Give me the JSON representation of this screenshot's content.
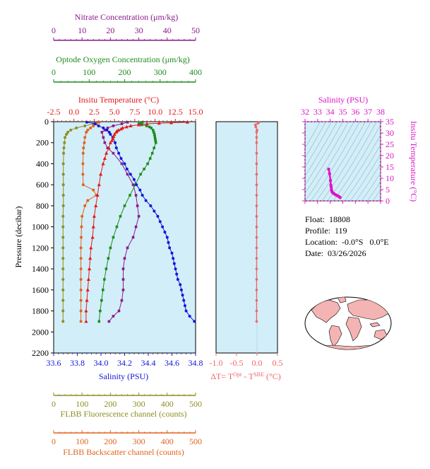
{
  "colors": {
    "nitrate": "#8B1A8B",
    "oxygen": "#1E8C1E",
    "temperature": "#E41A1A",
    "salinity": "#1414DC",
    "fluorescence": "#8E8E22",
    "backscatter": "#E0641E",
    "delta_t": "#F06464",
    "ts_magenta": "#DC14C8",
    "plot_bg": "#D2EEF8"
  },
  "float_info": {
    "float_label": "Float:",
    "float_value": "18808",
    "profile_label": "Profile:",
    "profile_value": "119",
    "location_label": "Location:",
    "location_lat": "-0.0°S",
    "location_lon": "0.0°E",
    "date_label": "Date:",
    "date_value": "03/26/2026"
  },
  "chart_data": [
    {
      "type": "line",
      "name": "main-profile",
      "y_axis": {
        "label": "Pressure (decibar)",
        "range": [
          0,
          2200
        ],
        "ticks": [
          0,
          200,
          400,
          600,
          800,
          1000,
          1200,
          1400,
          1600,
          1800,
          2000,
          2200
        ],
        "inverted": true
      },
      "axes": {
        "salinity": {
          "label": "Salinity (PSU)",
          "range": [
            33.6,
            34.8
          ],
          "ticks": [
            "33.6",
            "33.8",
            "34.0",
            "34.2",
            "34.4",
            "34.6",
            "34.8"
          ]
        },
        "temperature": {
          "label": "Insitu Temperature (°C)",
          "range": [
            -2.5,
            15
          ],
          "ticks": [
            "-2.5",
            "0.0",
            "2.5",
            "5.0",
            "7.5",
            "10.0",
            "12.5",
            "15.0"
          ]
        },
        "oxygen": {
          "label": "Optode Oxygen Concentration (μm/kg)",
          "range": [
            0,
            400
          ],
          "ticks": [
            "0",
            "100",
            "200",
            "300",
            "400"
          ]
        },
        "nitrate": {
          "label": "Nitrate Concentration (μm/kg)",
          "range": [
            0,
            50
          ],
          "ticks": [
            "0",
            "10",
            "20",
            "30",
            "40",
            "50"
          ]
        },
        "fluorescence": {
          "label": "FLBB Fluorescence channel (counts)",
          "range": [
            0,
            500
          ],
          "ticks": [
            "0",
            "100",
            "200",
            "300",
            "400",
            "500"
          ]
        },
        "backscatter": {
          "label": "FLBB Backscatter channel (counts)",
          "range": [
            0,
            500
          ],
          "ticks": [
            "0",
            "100",
            "200",
            "300",
            "400",
            "500"
          ]
        }
      },
      "series": [
        {
          "key": "temperature",
          "axis": "temperature",
          "marker": "triangle",
          "pressure": [
            5,
            10,
            15,
            20,
            30,
            40,
            50,
            60,
            70,
            80,
            90,
            100,
            120,
            140,
            160,
            180,
            200,
            250,
            300,
            350,
            400,
            500,
            600,
            700,
            800,
            900,
            1000,
            1100,
            1200,
            1300,
            1400,
            1500,
            1600,
            1700,
            1800,
            1900
          ],
          "values": [
            14.0,
            12.0,
            10.5,
            9.0,
            8.0,
            7.0,
            6.5,
            6.0,
            5.8,
            5.5,
            5.3,
            5.2,
            5.0,
            4.9,
            4.8,
            4.7,
            4.5,
            4.3,
            4.0,
            3.8,
            3.6,
            3.3,
            3.1,
            2.9,
            2.7,
            2.5,
            2.4,
            2.3,
            2.1,
            2.0,
            1.9,
            1.8,
            1.7,
            1.6,
            1.5,
            1.5
          ]
        },
        {
          "key": "salinity",
          "axis": "salinity",
          "marker": "circle",
          "pressure": [
            5,
            20,
            40,
            60,
            80,
            100,
            120,
            150,
            200,
            250,
            300,
            350,
            400,
            450,
            500,
            550,
            600,
            650,
            700,
            750,
            800,
            850,
            900,
            950,
            1000,
            1050,
            1100,
            1150,
            1200,
            1250,
            1300,
            1350,
            1400,
            1450,
            1500,
            1550,
            1600,
            1650,
            1700,
            1750,
            1800,
            1850,
            1900
          ],
          "values": [
            33.88,
            33.95,
            33.98,
            34.02,
            34.05,
            34.07,
            34.08,
            34.1,
            34.12,
            34.13,
            34.15,
            34.17,
            34.2,
            34.22,
            34.25,
            34.28,
            34.3,
            34.33,
            34.35,
            34.38,
            34.42,
            34.45,
            34.48,
            34.5,
            34.52,
            34.54,
            34.56,
            34.57,
            34.58,
            34.6,
            34.61,
            34.62,
            34.63,
            34.64,
            34.65,
            34.67,
            34.68,
            34.69,
            34.7,
            34.71,
            34.72,
            34.75,
            34.79
          ]
        },
        {
          "key": "oxygen",
          "axis": "oxygen",
          "marker": "square",
          "pressure": [
            5,
            10,
            20,
            30,
            40,
            50,
            60,
            80,
            100,
            120,
            140,
            160,
            180,
            200,
            250,
            300,
            350,
            400,
            450,
            500,
            600,
            700,
            800,
            900,
            1000,
            1100,
            1200,
            1300,
            1400,
            1500,
            1600,
            1700,
            1800,
            1900
          ],
          "values": [
            250,
            245,
            240,
            248,
            262,
            270,
            275,
            280,
            282,
            284,
            285,
            286,
            287,
            288,
            283,
            278,
            272,
            265,
            255,
            245,
            230,
            215,
            200,
            188,
            178,
            168,
            160,
            154,
            148,
            143,
            139,
            135,
            131,
            128
          ]
        },
        {
          "key": "nitrate",
          "axis": "nitrate",
          "marker": "square",
          "pressure": [
            5,
            20,
            40,
            60,
            80,
            100,
            150,
            200,
            250,
            300,
            400,
            500,
            600,
            700,
            800,
            900,
            1000,
            1100,
            1200,
            1300,
            1400,
            1500,
            1600,
            1700,
            1800,
            1850,
            1900
          ],
          "values": [
            26,
            24,
            21,
            19,
            18,
            17,
            17.5,
            18,
            19,
            21,
            24,
            26,
            28,
            29,
            29.5,
            30,
            29,
            28,
            26,
            25,
            24.5,
            24.5,
            24.5,
            24,
            23,
            21,
            19.5
          ]
        },
        {
          "key": "fluorescence",
          "axis": "fluorescence",
          "marker": "circle",
          "pressure": [
            5,
            20,
            40,
            60,
            80,
            100,
            120,
            150,
            200,
            250,
            300,
            400,
            500,
            600,
            700,
            800,
            900,
            1000,
            1100,
            1200,
            1300,
            1400,
            1500,
            1600,
            1700,
            1800,
            1900
          ],
          "values": [
            160,
            140,
            110,
            80,
            60,
            50,
            45,
            40,
            38,
            36,
            35,
            34,
            34,
            34,
            34,
            34,
            33,
            33,
            33,
            33,
            33,
            33,
            33,
            33,
            33,
            33,
            33
          ]
        },
        {
          "key": "backscatter",
          "axis": "backscatter",
          "marker": "circle",
          "pressure": [
            5,
            20,
            40,
            60,
            80,
            100,
            150,
            200,
            250,
            300,
            400,
            500,
            600,
            650,
            700,
            750,
            800,
            900,
            1000,
            1100,
            1200,
            1300,
            1400,
            1500,
            1600,
            1700,
            1800,
            1900
          ],
          "values": [
            160,
            150,
            140,
            130,
            120,
            115,
            110,
            108,
            105,
            104,
            103,
            103,
            104,
            140,
            150,
            120,
            110,
            100,
            98,
            97,
            96,
            96,
            96,
            96,
            96,
            96,
            96,
            96
          ]
        }
      ]
    },
    {
      "type": "line",
      "name": "delta-t",
      "xlabel": "ΔT= T^Opt - T^SBE (°C)",
      "x_ticks": [
        "-1.0",
        "-0.5",
        "0.0",
        "0.5"
      ],
      "xlim": [
        -1.0,
        0.5
      ],
      "ylim": [
        0,
        2200
      ],
      "series": [
        {
          "key": "delta_t",
          "pressure": [
            5,
            15,
            30,
            50,
            80,
            100,
            150,
            200,
            300,
            400,
            500,
            600,
            700,
            800,
            900,
            1000,
            1100,
            1200,
            1300,
            1400,
            1500,
            1600,
            1700,
            1800,
            1900
          ],
          "values": [
            0.05,
            0.02,
            -0.04,
            -0.03,
            0.0,
            -0.01,
            -0.01,
            -0.01,
            -0.01,
            -0.01,
            -0.01,
            -0.01,
            -0.01,
            -0.01,
            -0.01,
            -0.01,
            -0.01,
            -0.01,
            -0.01,
            -0.01,
            -0.01,
            -0.01,
            -0.01,
            -0.01,
            -0.01
          ]
        }
      ]
    },
    {
      "type": "scatter",
      "name": "ts-diagram",
      "xlabel": "Salinity (PSU)",
      "ylabel": "Insitu Temperature (°C)",
      "x_ticks": [
        "32",
        "33",
        "34",
        "35",
        "36",
        "37",
        "38"
      ],
      "y_ticks": [
        "0",
        "5",
        "10",
        "15",
        "20",
        "25",
        "30",
        "35"
      ],
      "xlim": [
        32,
        38
      ],
      "ylim": [
        0,
        35
      ],
      "series": [
        {
          "key": "ts",
          "salinity": [
            33.88,
            33.95,
            34.02,
            34.05,
            34.08,
            34.1,
            34.12,
            34.15,
            34.2,
            34.3,
            34.4,
            34.5,
            34.6,
            34.7,
            34.79
          ],
          "temperature": [
            14.0,
            12.0,
            9.0,
            7.0,
            6.0,
            5.0,
            4.5,
            4.0,
            3.6,
            3.2,
            2.8,
            2.5,
            2.2,
            1.9,
            1.5
          ]
        }
      ]
    }
  ]
}
